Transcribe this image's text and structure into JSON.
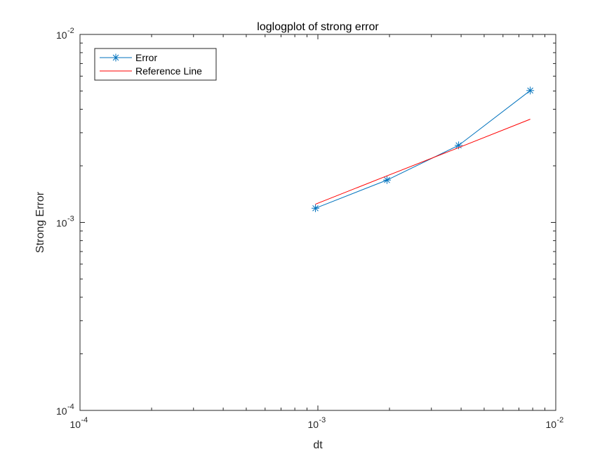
{
  "chart_data": {
    "type": "line",
    "title": "loglogplot of strong error",
    "xlabel": "dt",
    "ylabel": "Strong Error",
    "xscale": "log",
    "yscale": "log",
    "xlim": [
      0.0001,
      0.01
    ],
    "ylim": [
      0.0001,
      0.01
    ],
    "x_ticks": [
      {
        "base": "10",
        "exp": "-4",
        "value": 0.0001
      },
      {
        "base": "10",
        "exp": "-3",
        "value": 0.001
      },
      {
        "base": "10",
        "exp": "-2",
        "value": 0.01
      }
    ],
    "y_ticks": [
      {
        "base": "10",
        "exp": "-4",
        "value": 0.0001
      },
      {
        "base": "10",
        "exp": "-3",
        "value": 0.001
      },
      {
        "base": "10",
        "exp": "-2",
        "value": 0.01
      }
    ],
    "grid": false,
    "legend_position": "top-left",
    "series": [
      {
        "name": "Error",
        "color": "#0072BD",
        "marker": "asterisk",
        "x": [
          0.0009766,
          0.001953,
          0.003906,
          0.0078125
        ],
        "y": [
          0.00119,
          0.00168,
          0.00257,
          0.00503
        ]
      },
      {
        "name": "Reference Line",
        "color": "#FF0000",
        "marker": "none",
        "x": [
          0.0009766,
          0.001953,
          0.003906,
          0.0078125
        ],
        "y": [
          0.00125,
          0.00177,
          0.0025,
          0.00354
        ]
      }
    ]
  }
}
